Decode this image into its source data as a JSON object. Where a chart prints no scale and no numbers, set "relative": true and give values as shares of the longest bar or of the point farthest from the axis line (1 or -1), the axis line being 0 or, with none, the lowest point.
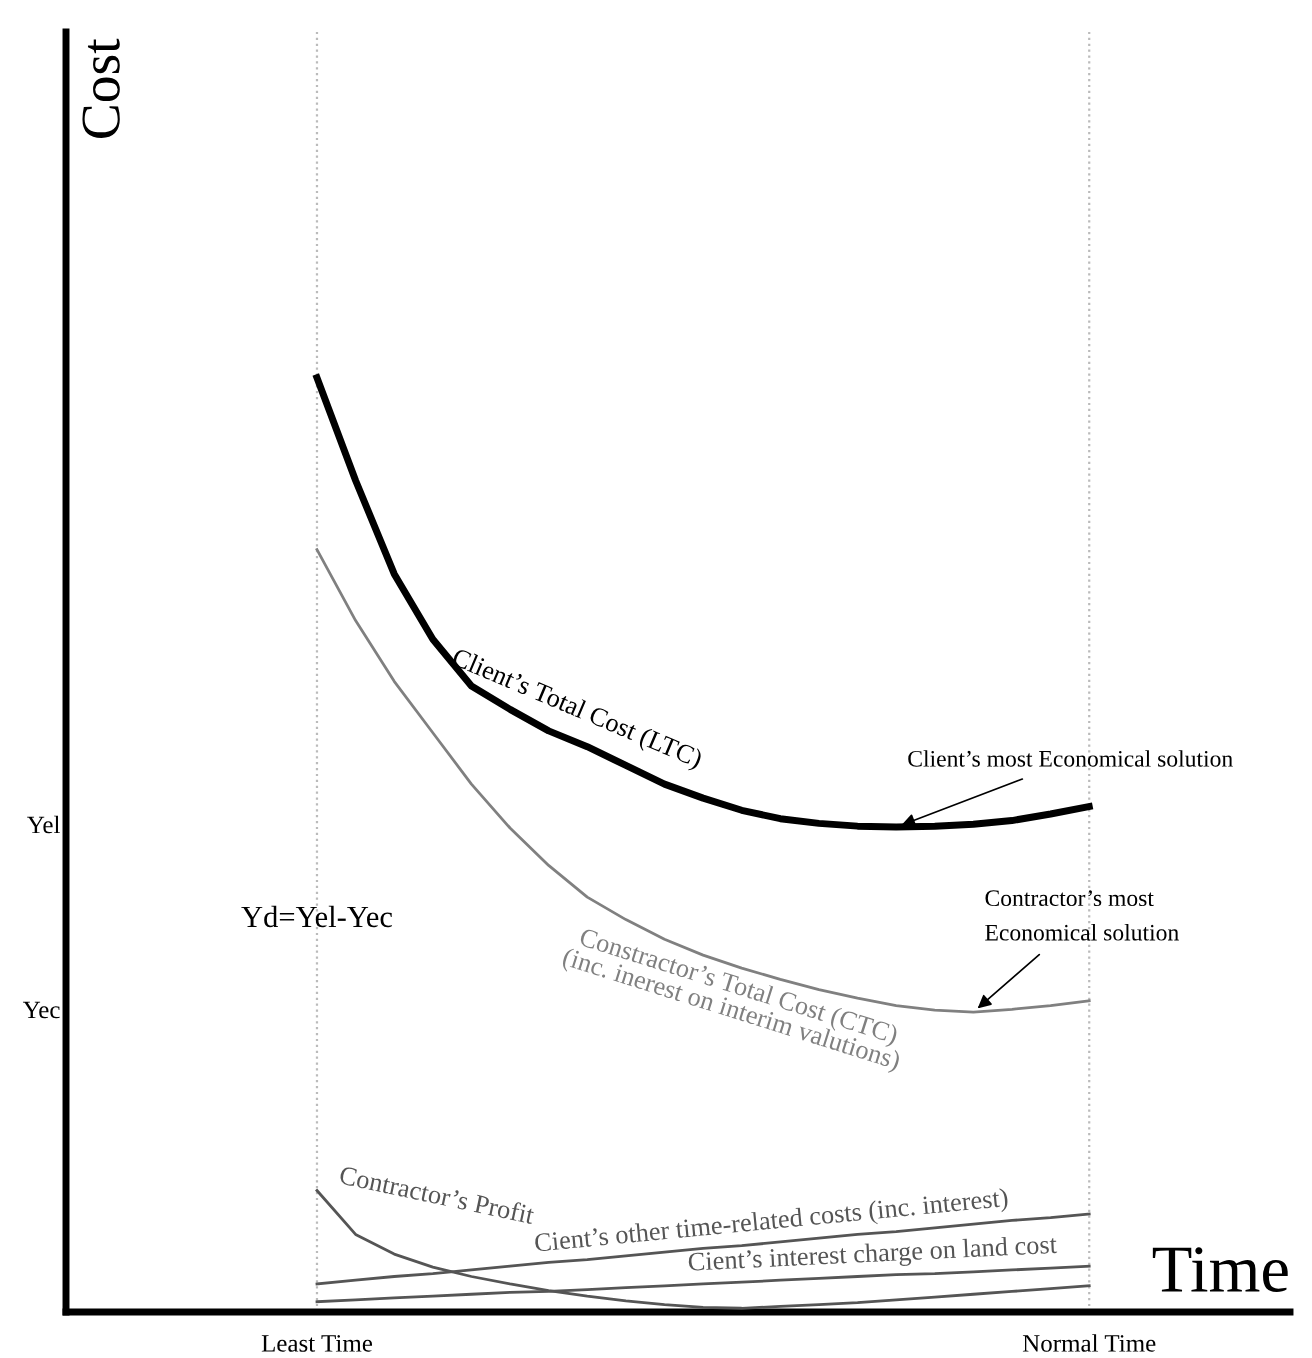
{
  "chart_data": {
    "type": "line",
    "relative": true,
    "xlabel": "Time",
    "categories": [
      "Least Time",
      null,
      null,
      null,
      null,
      null,
      null,
      null,
      null,
      null,
      null,
      null,
      null,
      null,
      null,
      null,
      null,
      null,
      null,
      null,
      "Normal Time"
    ],
    "line_style": "solid",
    "marker": "none",
    "series": [
      {
        "name": "Contractor’s Profit",
        "color": "#555555",
        "values": [
          0.13,
          0.083,
          0.062,
          0.048,
          0.038,
          0.03,
          0.023,
          0.017,
          0.012,
          0.008,
          0.005,
          0.004,
          0.006,
          0.008,
          0.01,
          0.013,
          0.016,
          0.019,
          0.022,
          0.025,
          0.028
        ]
      },
      {
        "name": "Client’s Total Cost (LTC)",
        "color": "#000000",
        "values": [
          1.0,
          0.89,
          0.79,
          0.72,
          0.67,
          0.645,
          0.622,
          0.605,
          0.585,
          0.565,
          0.55,
          0.537,
          0.528,
          0.523,
          0.52,
          0.519,
          0.52,
          0.522,
          0.526,
          0.533,
          0.541
        ]
      },
      {
        "name": "Constractor’s Total Cost (CTC)\n(inc. inerest on interim valutions)",
        "color": "#808080",
        "values": [
          0.816,
          0.74,
          0.675,
          0.62,
          0.565,
          0.518,
          0.478,
          0.444,
          0.42,
          0.399,
          0.382,
          0.368,
          0.356,
          0.345,
          0.336,
          0.328,
          0.323,
          0.321,
          0.324,
          0.328,
          0.333
        ]
      },
      {
        "name": "Cient’s other time-related costs (inc. interest)",
        "color": "#555555",
        "values": [
          0.03,
          0.034,
          0.038,
          0.041,
          0.045,
          0.049,
          0.053,
          0.056,
          0.06,
          0.064,
          0.068,
          0.071,
          0.075,
          0.079,
          0.083,
          0.086,
          0.09,
          0.094,
          0.098,
          0.101,
          0.105
        ]
      },
      {
        "name": "Cient’s interest charge on land cost",
        "color": "#555555",
        "values": [
          0.011,
          0.013,
          0.015,
          0.017,
          0.019,
          0.021,
          0.022,
          0.024,
          0.026,
          0.028,
          0.03,
          0.032,
          0.034,
          0.036,
          0.038,
          0.04,
          0.041,
          0.043,
          0.045,
          0.047,
          0.049
        ]
      }
    ],
    "ref_lines": [
      {
        "axis": "x",
        "value": "Least Time",
        "color": "#bbbbbb",
        "line_style": "dotted"
      },
      {
        "axis": "x",
        "value": "Normal Time",
        "color": "#bbbbbb",
        "line_style": "dotted"
      }
    ],
    "annotations": [
      "Client’s most Economical solution",
      "Contractor’s most\nEconomical solution",
      "Yel",
      "Yec",
      "Yd=Yel-Yec",
      "Cost"
    ]
  }
}
